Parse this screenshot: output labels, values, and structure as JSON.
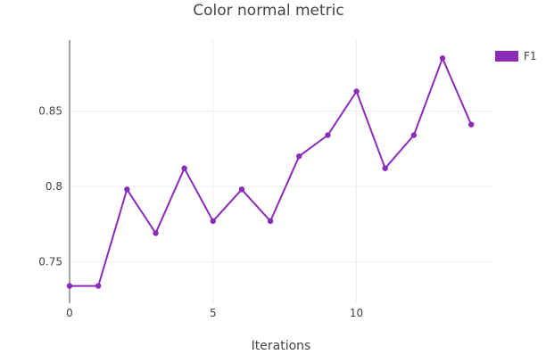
{
  "chart_data": {
    "type": "line",
    "title": "Color normal metric",
    "xlabel": "Iterations",
    "ylabel": "",
    "xlim": [
      0,
      14.74
    ],
    "ylim": [
      0.7225,
      0.897
    ],
    "xticks": [
      0,
      5,
      10
    ],
    "xtick_labels": [
      "0",
      "5",
      "10"
    ],
    "yticks": [
      0.75,
      0.8,
      0.85
    ],
    "ytick_labels": [
      "0.75",
      "0.8",
      "0.85"
    ],
    "grid": true,
    "legend_position": "top-right",
    "series": [
      {
        "name": "F1",
        "color": "#8a2bb9",
        "x": [
          0,
          1,
          2,
          3,
          4,
          5,
          6,
          7,
          8,
          9,
          10,
          11,
          12,
          13,
          14
        ],
        "y": [
          0.734,
          0.734,
          0.798,
          0.769,
          0.812,
          0.777,
          0.798,
          0.777,
          0.82,
          0.834,
          0.863,
          0.812,
          0.834,
          0.885,
          0.841
        ]
      }
    ]
  }
}
